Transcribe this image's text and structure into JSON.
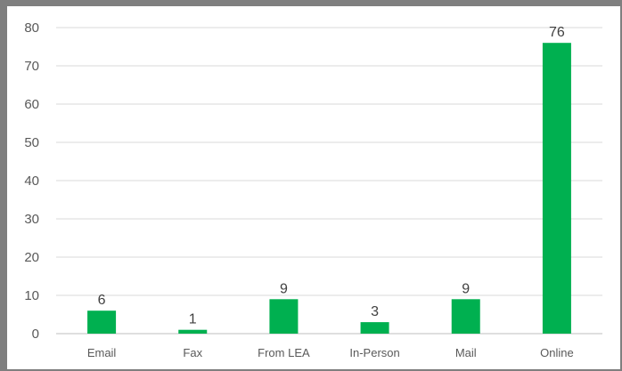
{
  "chart_data": {
    "type": "bar",
    "title": "",
    "xlabel": "",
    "ylabel": "",
    "categories": [
      "Email",
      "Fax",
      "From LEA",
      "In-Person",
      "Mail",
      "Online"
    ],
    "values": [
      6,
      1,
      9,
      3,
      9,
      76
    ],
    "ylim": [
      0,
      80
    ],
    "yticks": [
      0,
      10,
      20,
      30,
      40,
      50,
      60,
      70,
      80
    ],
    "grid": true,
    "data_labels": true,
    "legend": "none",
    "colors": {
      "bar": "#00b050",
      "grid": "#d9d9d9",
      "frame": "#7f7f7f"
    }
  }
}
